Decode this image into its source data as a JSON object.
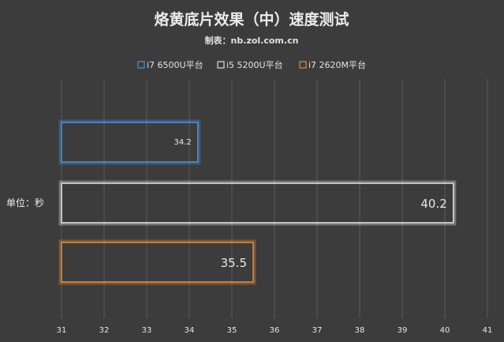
{
  "chart_data": {
    "type": "bar",
    "orientation": "horizontal",
    "title": "烙黄底片效果（中）速度测试",
    "subtitle": "制表：nb.zol.com.cn",
    "ylabel": "单位：秒",
    "xlabel": "",
    "xlim": [
      31,
      41
    ],
    "xticks": [
      "31",
      "32",
      "33",
      "34",
      "35",
      "36",
      "37",
      "38",
      "39",
      "40",
      "41"
    ],
    "grid": true,
    "legend_position": "top-center",
    "series": [
      {
        "name": "i7 6500U平台",
        "value": 34.2,
        "label": "34.2",
        "color": "#4a8fd6"
      },
      {
        "name": "i5 5200U平台",
        "value": 40.2,
        "label": "40.2",
        "color": "#dcdcdc"
      },
      {
        "name": "i7 2620M平台",
        "value": 35.5,
        "label": "35.5",
        "color": "#e08a3a"
      }
    ]
  }
}
